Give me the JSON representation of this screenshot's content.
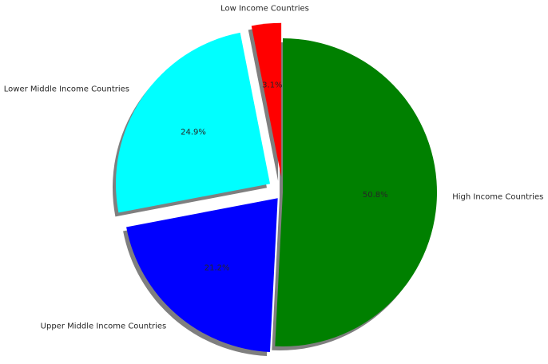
{
  "chart_data": {
    "type": "pie",
    "title": "",
    "start_angle_deg": 90,
    "direction": "counterclockwise",
    "shadow": true,
    "slices": [
      {
        "label": "Low Income Countries",
        "value": 3.1,
        "percent_label": "3.1%",
        "color": "#ff0000",
        "explode": 0.1
      },
      {
        "label": "Lower Middle Income Countries",
        "value": 24.9,
        "percent_label": "24.9%",
        "color": "#00ffff",
        "explode": 0.1
      },
      {
        "label": "Upper Middle Income Countries",
        "value": 21.2,
        "percent_label": "21.2%",
        "color": "#0000ff",
        "explode": 0.05
      },
      {
        "label": "High Income Countries",
        "value": 50.8,
        "percent_label": "50.8%",
        "color": "#008000",
        "explode": 0
      }
    ]
  }
}
